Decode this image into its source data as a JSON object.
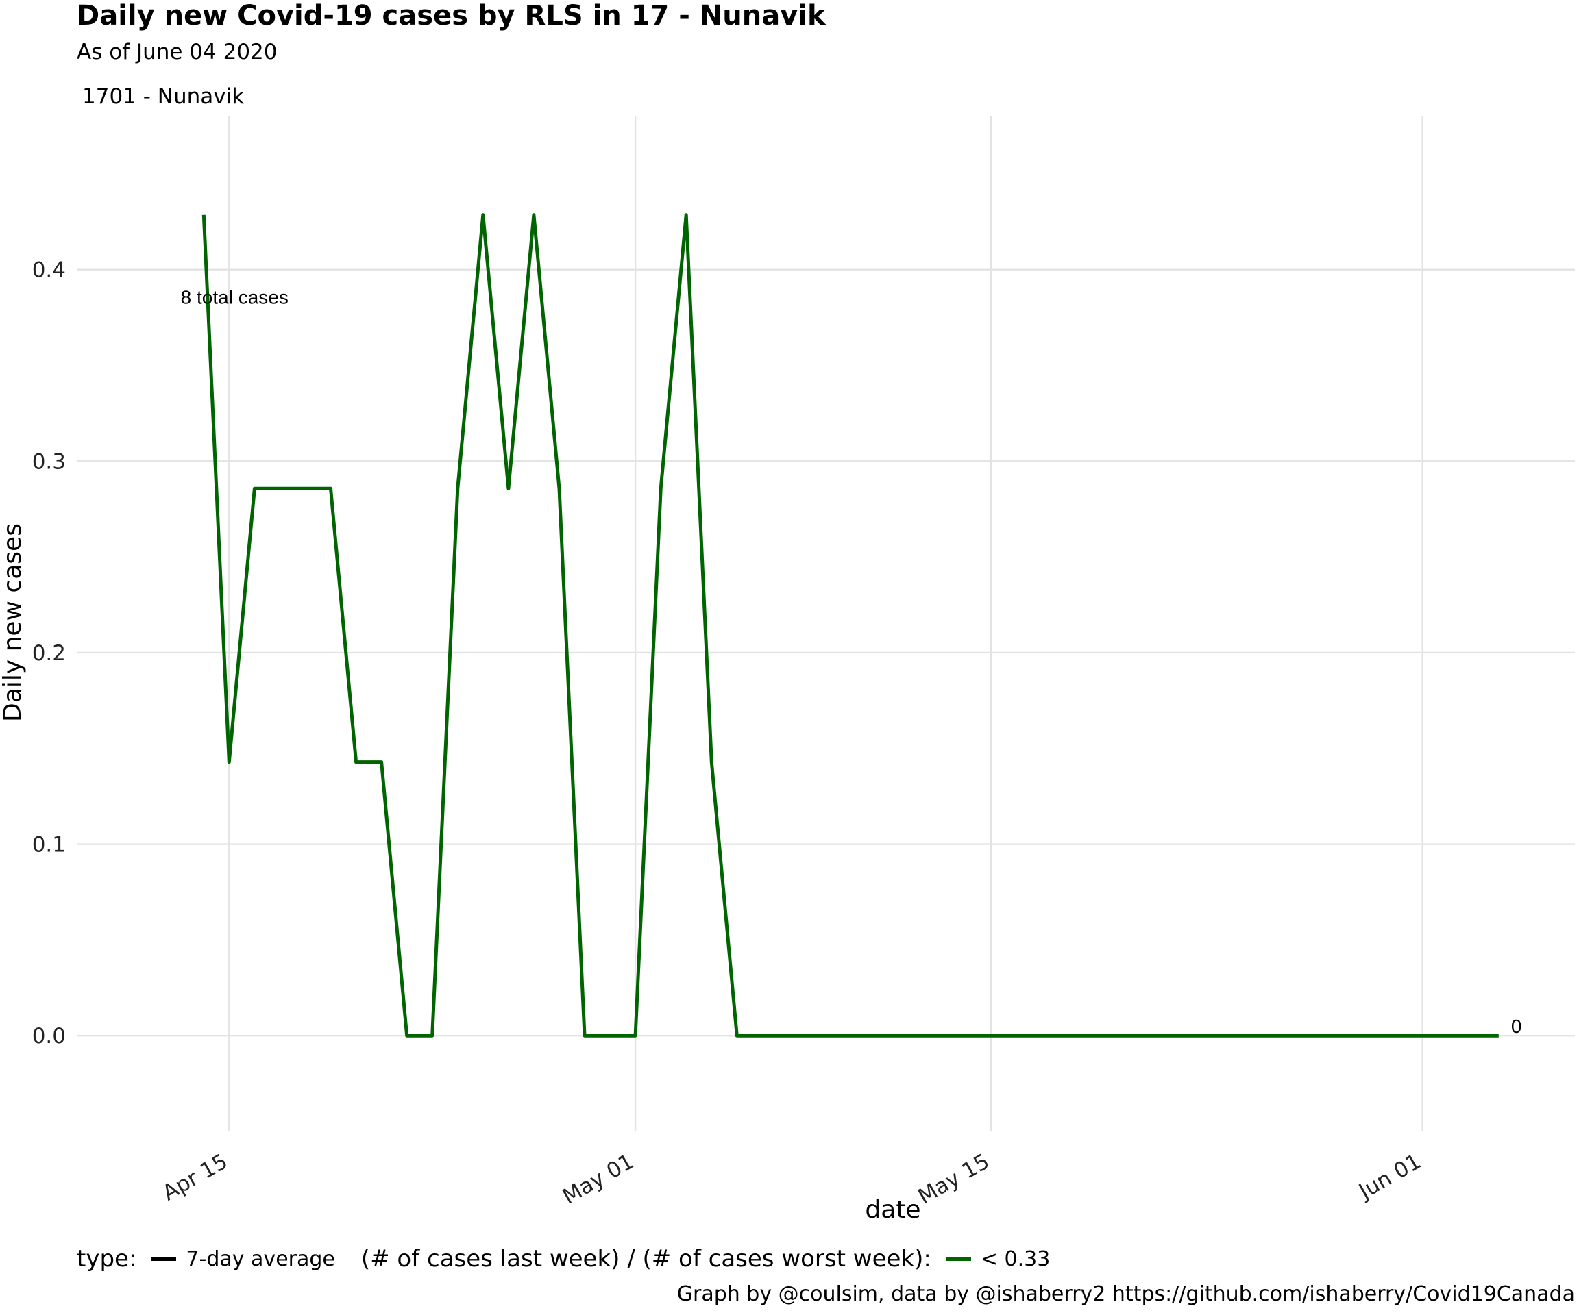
{
  "chart_data": {
    "type": "line",
    "title": "Daily new Covid-19 cases by RLS in 17 - Nunavik",
    "subtitle": "As of June 04 2020",
    "panel_label": "1701 - Nunavik",
    "xlabel": "date",
    "ylabel": "Daily new cases",
    "x_type": "date",
    "xlim": [
      "2020-04-09",
      "2020-06-07"
    ],
    "ylim": [
      -0.05,
      0.48
    ],
    "x_ticks": [
      {
        "date": "2020-04-15",
        "label": "Apr 15"
      },
      {
        "date": "2020-05-01",
        "label": "May 01"
      },
      {
        "date": "2020-05-15",
        "label": "May 15"
      },
      {
        "date": "2020-06-01",
        "label": "Jun 01"
      }
    ],
    "y_ticks": [
      {
        "value": 0.0,
        "label": "0.0"
      },
      {
        "value": 0.1,
        "label": "0.1"
      },
      {
        "value": 0.2,
        "label": "0.2"
      },
      {
        "value": 0.3,
        "label": "0.3"
      },
      {
        "value": 0.4,
        "label": "0.4"
      }
    ],
    "grid": true,
    "legend_position": "bottom",
    "series": [
      {
        "color": "#006400",
        "points": [
          [
            "2020-04-14",
            0.4286
          ],
          [
            "2020-04-15",
            0.1429
          ],
          [
            "2020-04-16",
            0.2857
          ],
          [
            "2020-04-17",
            0.2857
          ],
          [
            "2020-04-18",
            0.2857
          ],
          [
            "2020-04-19",
            0.2857
          ],
          [
            "2020-04-20",
            0.1429
          ],
          [
            "2020-04-21",
            0.1429
          ],
          [
            "2020-04-22",
            0.0
          ],
          [
            "2020-04-23",
            0.0
          ],
          [
            "2020-04-24",
            0.2857
          ],
          [
            "2020-04-25",
            0.4286
          ],
          [
            "2020-04-26",
            0.2857
          ],
          [
            "2020-04-27",
            0.4286
          ],
          [
            "2020-04-28",
            0.2857
          ],
          [
            "2020-04-29",
            0.0
          ],
          [
            "2020-04-30",
            0.0
          ],
          [
            "2020-05-01",
            0.0
          ],
          [
            "2020-05-02",
            0.2857
          ],
          [
            "2020-05-03",
            0.4286
          ],
          [
            "2020-05-04",
            0.1429
          ],
          [
            "2020-05-05",
            0.0
          ],
          [
            "2020-06-04",
            0.0
          ]
        ]
      }
    ],
    "annotations": [
      {
        "text": "8 total cases",
        "date": "2020-04-14",
        "value": 0.385
      },
      {
        "text": "0",
        "date": "2020-06-04",
        "value": 0.0,
        "anchor": "end-label"
      }
    ],
    "legend": {
      "type_label": "type:",
      "type_entry": "7-day average",
      "type_color": "#000000",
      "ratio_label": "(# of cases last week) / (# of cases worst week):",
      "ratio_entry": "< 0.33",
      "ratio_color": "#006400"
    },
    "caption": "Graph by @coulsim, data by @ishaberry2 https://github.com/ishaberry/Covid19Canada"
  }
}
